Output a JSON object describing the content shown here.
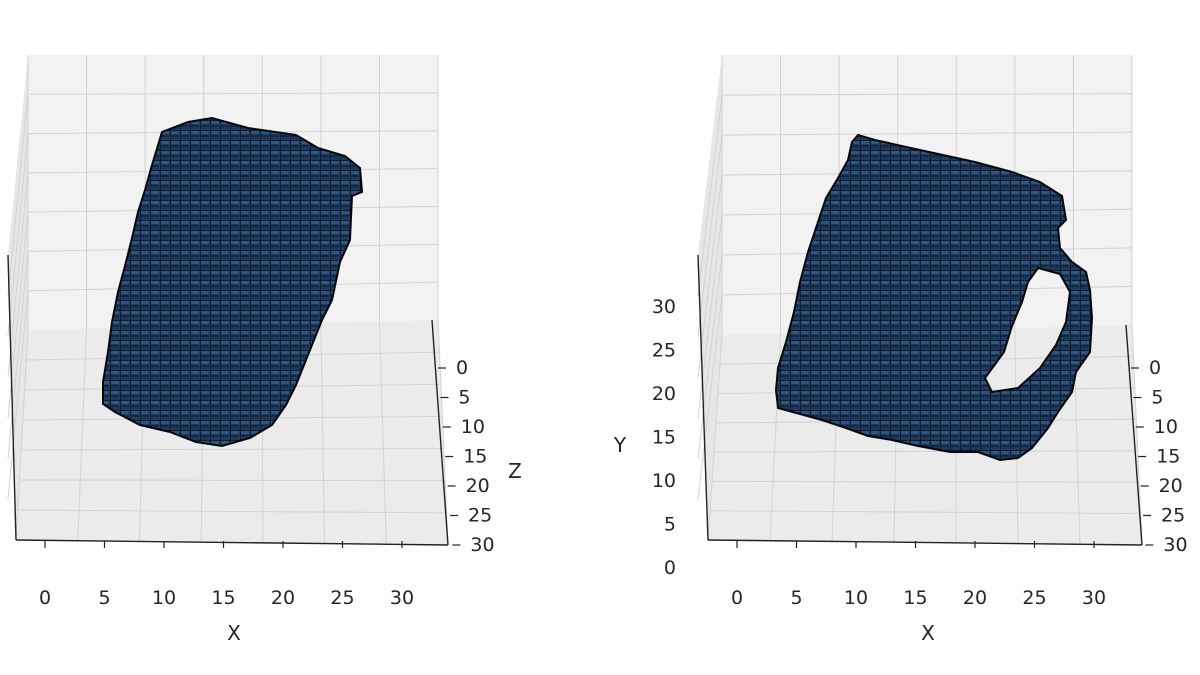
{
  "chart_data": [
    {
      "type": "voxel-3d",
      "title": "",
      "xlabel": "X",
      "ylabel": "",
      "zlabel": "Z",
      "xticks": [
        "0",
        "5",
        "10",
        "15",
        "20",
        "25",
        "30"
      ],
      "yticks": [],
      "zticks": [
        "0",
        "5",
        "10",
        "15",
        "20",
        "25",
        "30"
      ],
      "xlim": [
        0,
        32
      ],
      "zlim": [
        0,
        32
      ],
      "grid": true,
      "voxel_color": "#1f3a5c",
      "voxel_edge_color": "#05080d",
      "shape": "cylinder without handle",
      "view": "elevated, looking down onto the X–Z plane"
    },
    {
      "type": "voxel-3d",
      "title": "",
      "xlabel": "X",
      "ylabel": "Y",
      "zlabel": "",
      "xticks": [
        "0",
        "5",
        "10",
        "15",
        "20",
        "25",
        "30"
      ],
      "yticks": [
        "0",
        "5",
        "10",
        "15",
        "20",
        "25",
        "30"
      ],
      "zticks": [
        "0",
        "5",
        "10",
        "15",
        "20",
        "25",
        "30"
      ],
      "xlim": [
        0,
        32
      ],
      "ylim": [
        0,
        32
      ],
      "zlim": [
        0,
        32
      ],
      "grid": true,
      "voxel_color": "#1f3a5c",
      "voxel_edge_color": "#05080d",
      "shape": "mug with handle",
      "view": "slightly elevated, showing X–Y face"
    }
  ]
}
